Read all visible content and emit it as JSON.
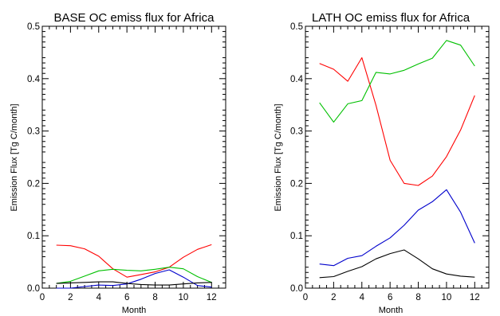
{
  "chart_data": [
    {
      "type": "line",
      "title": "BASE OC emiss flux for Africa",
      "xlabel": "Month",
      "ylabel": "Emission Flux [Tg C/month]",
      "xlim": [
        0,
        13
      ],
      "ylim": [
        0,
        0.5
      ],
      "x_ticks": [
        "0",
        "2",
        "4",
        "6",
        "8",
        "10",
        "12"
      ],
      "y_ticks": [
        "0.0",
        "0.1",
        "0.2",
        "0.3",
        "0.4",
        "0.5"
      ],
      "grid": false,
      "x": [
        1,
        2,
        3,
        4,
        5,
        6,
        7,
        8,
        9,
        10,
        11,
        12
      ],
      "series": [
        {
          "color": "#ff0000",
          "values": [
            0.082,
            0.081,
            0.075,
            0.061,
            0.037,
            0.021,
            0.026,
            0.031,
            0.04,
            0.059,
            0.074,
            0.083
          ]
        },
        {
          "color": "#00c000",
          "values": [
            0.009,
            0.013,
            0.023,
            0.033,
            0.036,
            0.034,
            0.033,
            0.036,
            0.04,
            0.037,
            0.022,
            0.011
          ]
        },
        {
          "color": "#0000cc",
          "values": [
            0.0,
            0.0,
            0.003,
            0.006,
            0.005,
            0.008,
            0.017,
            0.028,
            0.035,
            0.021,
            0.005,
            0.002
          ]
        },
        {
          "color": "#000000",
          "values": [
            0.009,
            0.01,
            0.011,
            0.012,
            0.012,
            0.009,
            0.007,
            0.006,
            0.006,
            0.008,
            0.01,
            0.011
          ]
        }
      ]
    },
    {
      "type": "line",
      "title": "LATH OC emiss flux for Africa",
      "xlabel": "Month",
      "ylabel": "Emission Flux [Tg C/month]",
      "xlim": [
        0,
        13
      ],
      "ylim": [
        0,
        0.5
      ],
      "x_ticks": [
        "0",
        "2",
        "4",
        "6",
        "8",
        "10",
        "12"
      ],
      "y_ticks": [
        "0.0",
        "0.1",
        "0.2",
        "0.3",
        "0.4",
        "0.5"
      ],
      "grid": false,
      "x": [
        1,
        2,
        3,
        4,
        5,
        6,
        7,
        8,
        9,
        10,
        11,
        12
      ],
      "series": [
        {
          "color": "#ff0000",
          "values": [
            0.429,
            0.418,
            0.395,
            0.44,
            0.349,
            0.244,
            0.2,
            0.196,
            0.214,
            0.251,
            0.302,
            0.368
          ]
        },
        {
          "color": "#00c000",
          "values": [
            0.354,
            0.317,
            0.352,
            0.358,
            0.412,
            0.409,
            0.416,
            0.428,
            0.439,
            0.473,
            0.464,
            0.424
          ]
        },
        {
          "color": "#0000cc",
          "values": [
            0.046,
            0.043,
            0.057,
            0.062,
            0.08,
            0.096,
            0.12,
            0.149,
            0.165,
            0.188,
            0.145,
            0.086
          ]
        },
        {
          "color": "#000000",
          "values": [
            0.02,
            0.022,
            0.032,
            0.041,
            0.056,
            0.066,
            0.073,
            0.056,
            0.037,
            0.027,
            0.023,
            0.021
          ]
        }
      ]
    }
  ]
}
